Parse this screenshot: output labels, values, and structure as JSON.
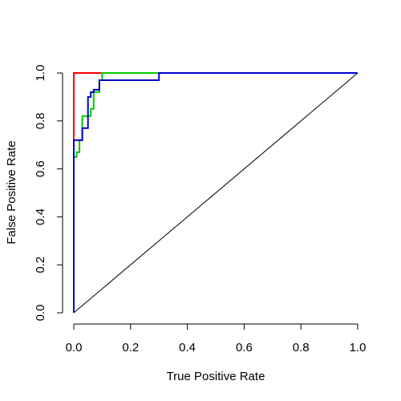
{
  "chart_data": {
    "type": "line",
    "title": "",
    "xlabel": "True Positive Rate",
    "ylabel": "False Positive Rate",
    "xlim": [
      0,
      1
    ],
    "ylim": [
      0,
      1
    ],
    "xticks": [
      "0.0",
      "0.2",
      "0.4",
      "0.6",
      "0.8",
      "1.0"
    ],
    "yticks": [
      "0.0",
      "0.2",
      "0.4",
      "0.6",
      "0.8",
      "1.0"
    ],
    "grid": false,
    "legend": "none",
    "series": [
      {
        "color": "#ff0000",
        "x": [
          0,
          0,
          0.1,
          1
        ],
        "y": [
          0,
          1,
          1,
          1
        ]
      },
      {
        "color": "#00cc00",
        "x": [
          0,
          0,
          0.01,
          0.01,
          0.02,
          0.02,
          0.03,
          0.03,
          0.06,
          0.06,
          0.07,
          0.07,
          0.09,
          0.09,
          0.1,
          0.1,
          0.3,
          1
        ],
        "y": [
          0,
          0.65,
          0.65,
          0.67,
          0.67,
          0.72,
          0.72,
          0.82,
          0.82,
          0.85,
          0.85,
          0.92,
          0.92,
          0.97,
          0.97,
          1,
          1,
          1
        ]
      },
      {
        "color": "#0000cc",
        "x": [
          0,
          0,
          0.03,
          0.03,
          0.05,
          0.05,
          0.06,
          0.06,
          0.07,
          0.07,
          0.09,
          0.09,
          0.3,
          0.3,
          1
        ],
        "y": [
          0,
          0.72,
          0.72,
          0.77,
          0.77,
          0.9,
          0.9,
          0.92,
          0.92,
          0.93,
          0.93,
          0.97,
          0.97,
          1,
          1
        ]
      },
      {
        "color": "#000000",
        "x": [
          0,
          1
        ],
        "y": [
          0,
          1
        ]
      }
    ]
  }
}
